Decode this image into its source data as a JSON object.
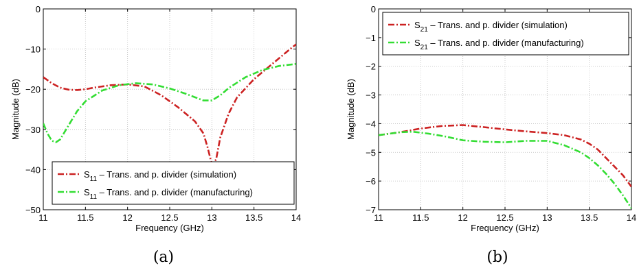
{
  "colors": {
    "simulation": "#cc2222",
    "manufacturing": "#33dd33"
  },
  "chart_data": [
    {
      "type": "line",
      "caption": "(a)",
      "xlabel": "Frequency (GHz)",
      "ylabel": "Magnitude (dB)",
      "xlim": [
        11,
        14
      ],
      "ylim": [
        -50,
        0
      ],
      "xticks": [
        11,
        11.5,
        12,
        12.5,
        13,
        13.5,
        14
      ],
      "yticks": [
        0,
        -10,
        -20,
        -30,
        -40,
        -50
      ],
      "grid": true,
      "legend_position": "bottom-right",
      "series": [
        {
          "name_main": "S",
          "name_sub": "11",
          "name_rest": " – Trans. and p. divider (simulation)",
          "color_key": "simulation",
          "x": [
            11,
            11.1,
            11.2,
            11.3,
            11.4,
            11.5,
            11.6,
            11.8,
            12,
            12.2,
            12.4,
            12.6,
            12.8,
            12.9,
            12.95,
            13,
            13.05,
            13.1,
            13.2,
            13.3,
            13.5,
            13.7,
            13.9,
            14
          ],
          "y": [
            -17,
            -18.5,
            -19.6,
            -20.1,
            -20.2,
            -20,
            -19.6,
            -19,
            -18.8,
            -19.3,
            -21.5,
            -24.5,
            -28,
            -31,
            -34.5,
            -38.7,
            -37.5,
            -32,
            -26,
            -22,
            -17.5,
            -14,
            -10.5,
            -8.8
          ]
        },
        {
          "name_main": "S",
          "name_sub": "11",
          "name_rest": " – Trans. and p. divider (manufacturing)",
          "color_key": "manufacturing",
          "x": [
            11,
            11.05,
            11.1,
            11.15,
            11.2,
            11.3,
            11.4,
            11.5,
            11.7,
            11.9,
            12.1,
            12.3,
            12.5,
            12.7,
            12.9,
            13,
            13.1,
            13.2,
            13.4,
            13.6,
            13.8,
            14
          ],
          "y": [
            -28.5,
            -31,
            -32.8,
            -33.2,
            -32.5,
            -29,
            -25.5,
            -23,
            -20.3,
            -19,
            -18.5,
            -18.8,
            -19.8,
            -21.2,
            -22.8,
            -22.8,
            -21.5,
            -19.7,
            -17,
            -15.2,
            -14.2,
            -13.7
          ]
        }
      ]
    },
    {
      "type": "line",
      "caption": "(b)",
      "xlabel": "Frequency (GHz)",
      "ylabel": "Magnitude (dB)",
      "xlim": [
        11,
        14
      ],
      "ylim": [
        -7,
        0
      ],
      "xticks": [
        11,
        11.5,
        12,
        12.5,
        13,
        13.5,
        14
      ],
      "yticks": [
        0,
        -1,
        -2,
        -3,
        -4,
        -5,
        -6,
        -7
      ],
      "grid": true,
      "legend_position": "top-right",
      "series": [
        {
          "name_main": "S",
          "name_sub": "21",
          "name_rest": " – Trans. and p. divider (simulation)",
          "color_key": "simulation",
          "x": [
            11,
            11.25,
            11.5,
            11.75,
            12,
            12.25,
            12.5,
            12.75,
            13,
            13.2,
            13.4,
            13.5,
            13.6,
            13.7,
            13.8,
            13.9,
            14
          ],
          "y": [
            -4.4,
            -4.3,
            -4.17,
            -4.08,
            -4.05,
            -4.12,
            -4.2,
            -4.27,
            -4.33,
            -4.4,
            -4.55,
            -4.7,
            -4.9,
            -5.2,
            -5.5,
            -5.8,
            -6.2
          ]
        },
        {
          "name_main": "S",
          "name_sub": "21",
          "name_rest": " – Trans. and p. divider (manufacturing)",
          "color_key": "manufacturing",
          "x": [
            11,
            11.25,
            11.4,
            11.6,
            11.8,
            12,
            12.25,
            12.5,
            12.75,
            13,
            13.2,
            13.4,
            13.5,
            13.6,
            13.7,
            13.8,
            13.9,
            14
          ],
          "y": [
            -4.4,
            -4.3,
            -4.28,
            -4.35,
            -4.45,
            -4.58,
            -4.63,
            -4.65,
            -4.6,
            -4.6,
            -4.75,
            -5.0,
            -5.2,
            -5.45,
            -5.75,
            -6.1,
            -6.5,
            -6.95
          ]
        }
      ]
    }
  ]
}
